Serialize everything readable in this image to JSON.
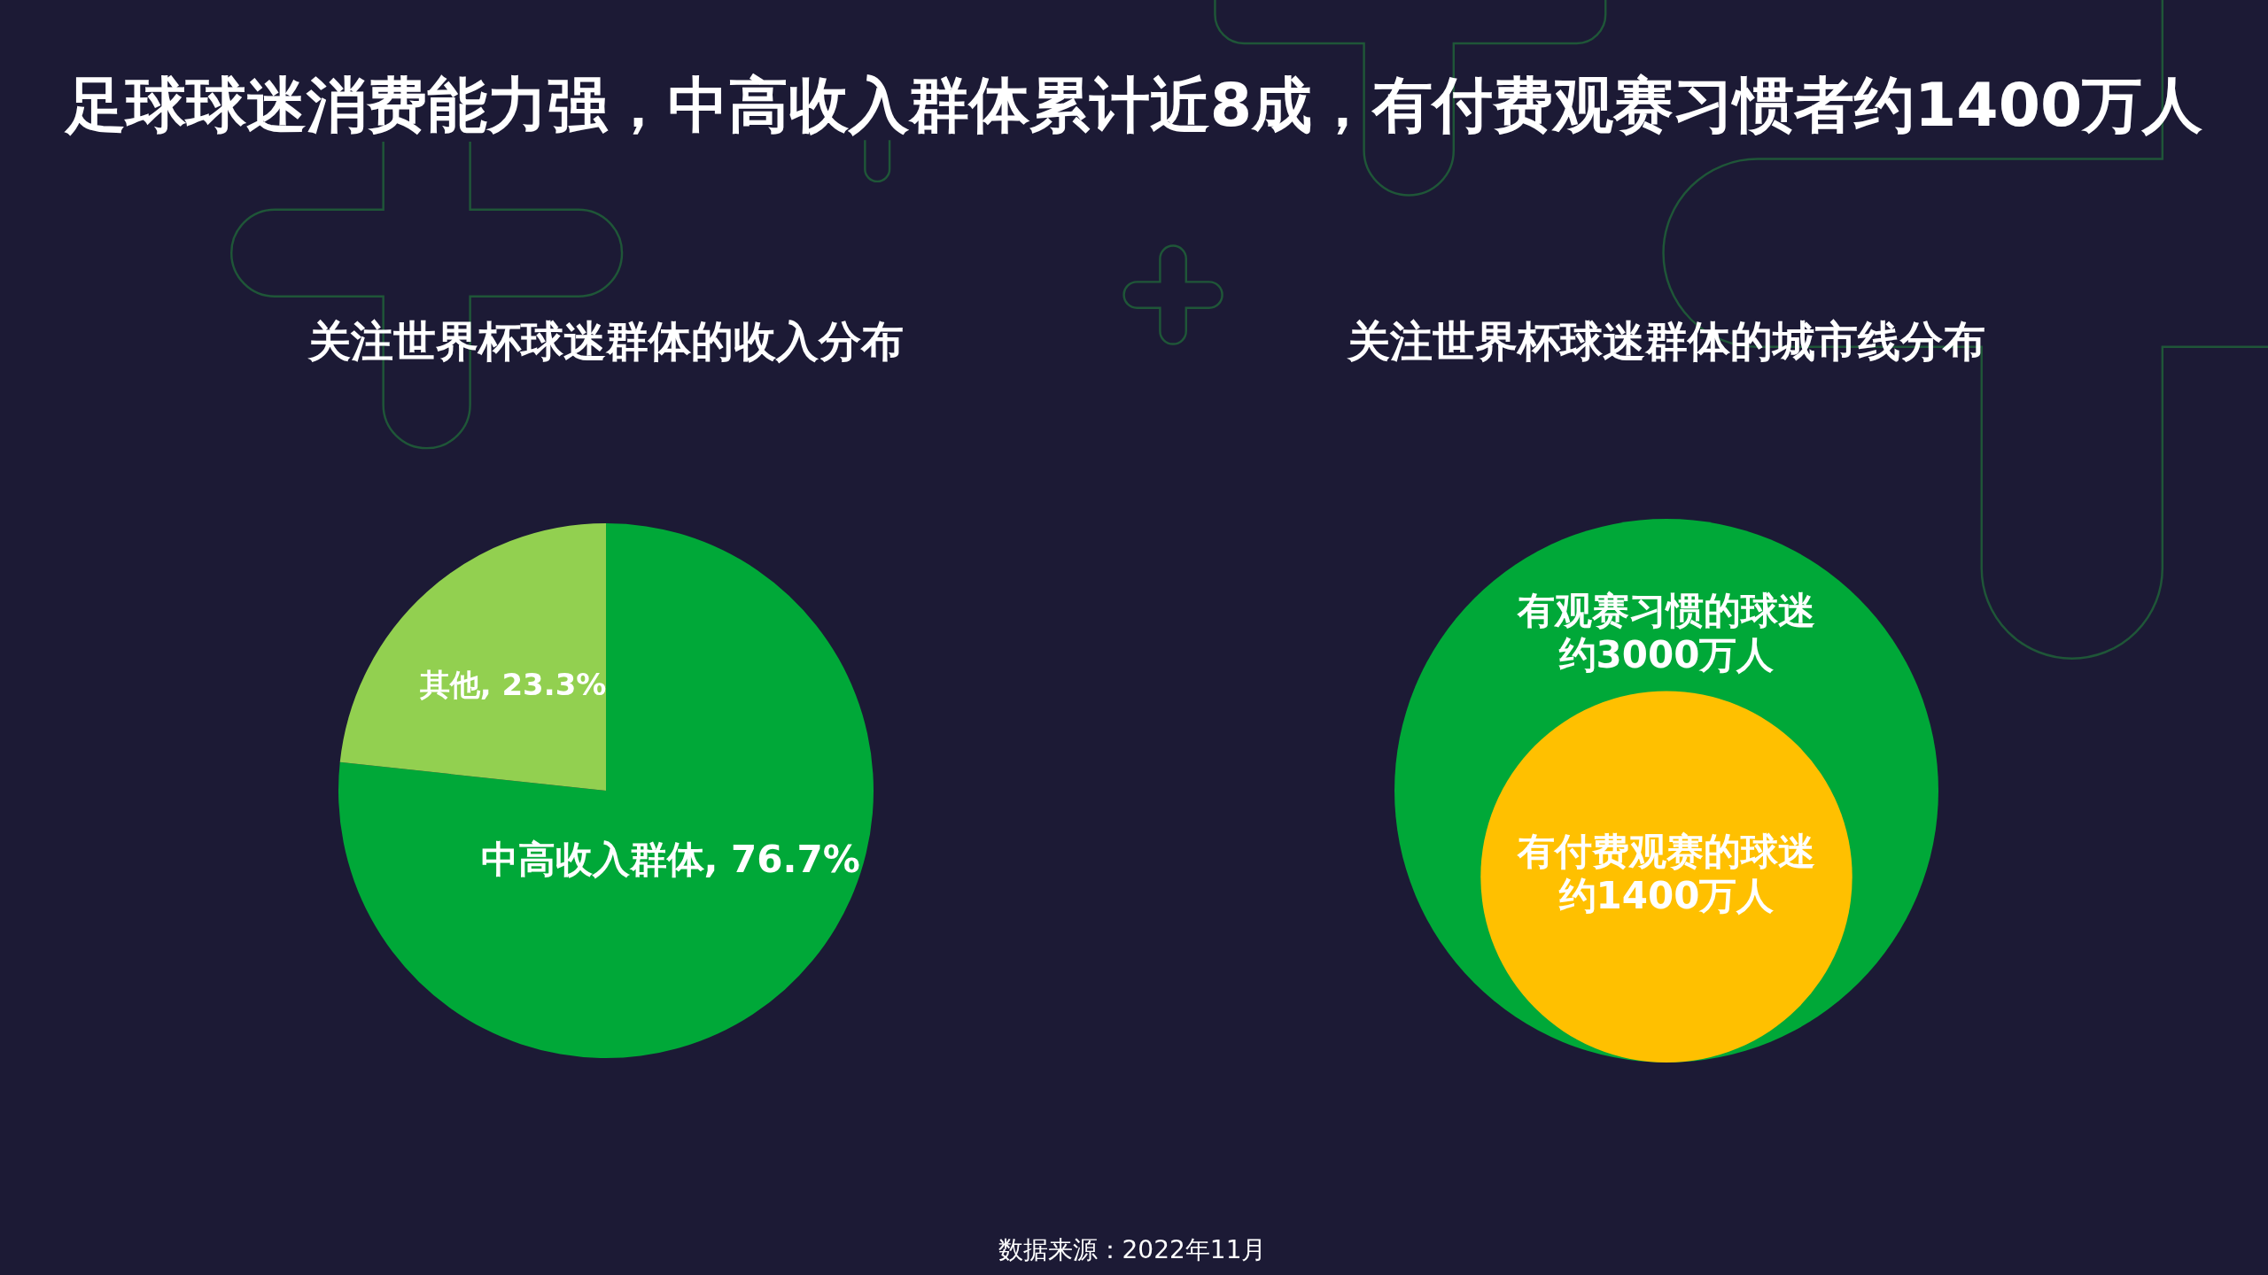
{
  "chart_data": [
    {
      "type": "pie",
      "title": "足球球迷消费能力强，中高收入群体累计近8成，有付费观赛习惯者约1400万人",
      "subtitle": "关注世界杯球迷群体的收入分布",
      "categories": [
        "中高收入群体",
        "其他"
      ],
      "values": [
        76.7,
        23.3
      ],
      "colors": [
        "#00a838",
        "#92d050"
      ],
      "value_labels": [
        "76.7%",
        "23.3%"
      ],
      "annotations": [
        "数据来源：2022年11月"
      ]
    },
    {
      "type": "other",
      "subtitle": "关注世界杯球迷群体的城市线分布",
      "categories": [
        "有观赛习惯的球迷",
        "有付费观赛的球迷"
      ],
      "values": [
        3000,
        1400
      ],
      "colors": [
        "#00a838",
        "#ffc000"
      ],
      "value_labels": [
        "约3000万人",
        "约1400万人"
      ]
    }
  ]
}
